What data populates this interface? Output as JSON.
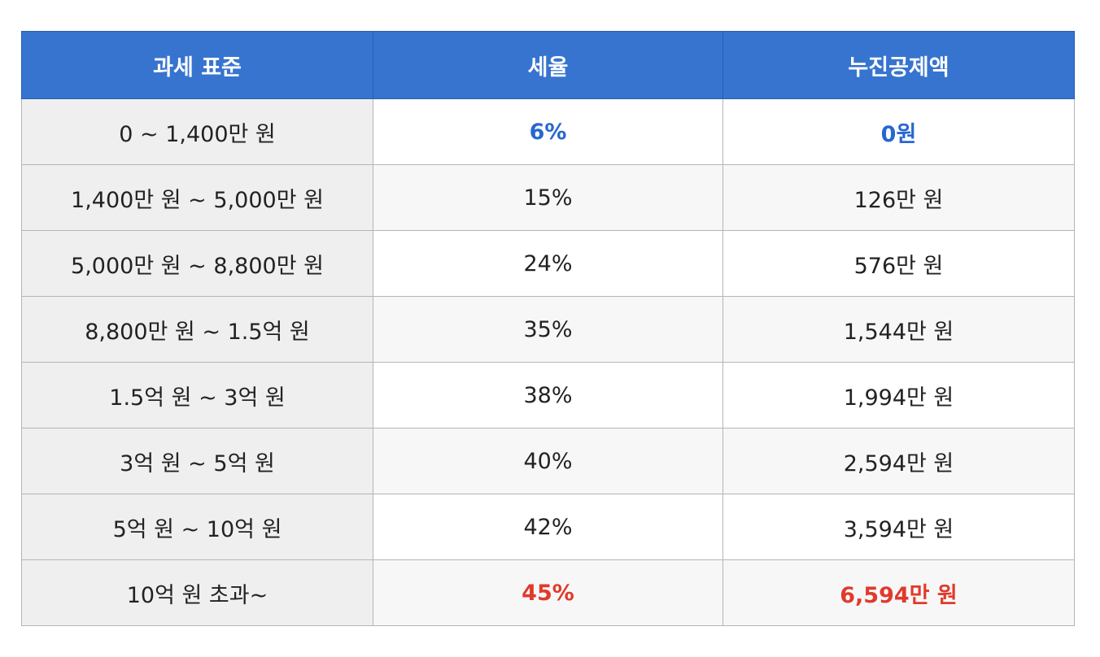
{
  "table": {
    "headers": [
      "과세 표준",
      "세율",
      "누진공제액"
    ],
    "rows": [
      [
        "0 ~ 1,400만 원",
        "6%",
        "0원"
      ],
      [
        "1,400만 원 ~ 5,000만 원",
        "15%",
        "126만 원"
      ],
      [
        "5,000만 원 ~ 8,800만 원",
        "24%",
        "576만 원"
      ],
      [
        "8,800만 원 ~ 1.5억 원",
        "35%",
        "1,544만 원"
      ],
      [
        "1.5억 원 ~ 3억 원",
        "38%",
        "1,994만 원"
      ],
      [
        "3억 원 ~ 5억 원",
        "40%",
        "2,594만 원"
      ],
      [
        "5억 원 ~ 10억 원",
        "42%",
        "3,594만 원"
      ],
      [
        "10억 원 초과~",
        "45%",
        "6,594만 원"
      ]
    ]
  },
  "colors": {
    "header_bg": "#3674cf",
    "highlight_blue": "#2767d0",
    "highlight_red": "#e03a2c"
  }
}
